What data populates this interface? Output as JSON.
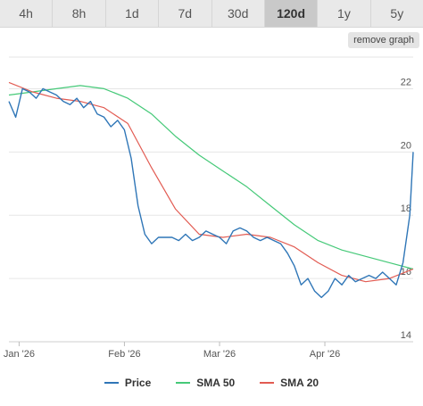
{
  "tabs": [
    {
      "label": "4h",
      "active": false
    },
    {
      "label": "8h",
      "active": false
    },
    {
      "label": "1d",
      "active": false
    },
    {
      "label": "7d",
      "active": false
    },
    {
      "label": "30d",
      "active": false
    },
    {
      "label": "120d",
      "active": true
    },
    {
      "label": "1y",
      "active": false
    },
    {
      "label": "5y",
      "active": false
    }
  ],
  "remove_graph_label": "remove graph",
  "colors": {
    "price": "#2f76b7",
    "sma50": "#45c978",
    "sma20": "#e25b52"
  },
  "chart_data": {
    "type": "line",
    "y_range": [
      14,
      23
    ],
    "y_ticks": [
      "14",
      "16",
      "18",
      "20",
      "22"
    ],
    "x_ticks": [
      {
        "label": "Jan '26",
        "date": "2026-01-01"
      },
      {
        "label": "Feb '26",
        "date": "2026-02-01"
      },
      {
        "label": "Mar '26",
        "date": "2026-03-01"
      },
      {
        "label": "Apr '26",
        "date": "2026-04-01"
      }
    ],
    "x_range": [
      "2025-12-29",
      "2026-04-27"
    ],
    "grid": true,
    "legend_position": "bottom",
    "series": [
      {
        "name": "Price",
        "key": "price",
        "points": [
          [
            "2025-12-29",
            21.6
          ],
          [
            "2025-12-31",
            21.1
          ],
          [
            "2026-01-02",
            22.0
          ],
          [
            "2026-01-04",
            21.9
          ],
          [
            "2026-01-06",
            21.7
          ],
          [
            "2026-01-08",
            22.0
          ],
          [
            "2026-01-10",
            21.9
          ],
          [
            "2026-01-12",
            21.8
          ],
          [
            "2026-01-14",
            21.6
          ],
          [
            "2026-01-16",
            21.5
          ],
          [
            "2026-01-18",
            21.7
          ],
          [
            "2026-01-20",
            21.4
          ],
          [
            "2026-01-22",
            21.6
          ],
          [
            "2026-01-24",
            21.2
          ],
          [
            "2026-01-26",
            21.1
          ],
          [
            "2026-01-28",
            20.8
          ],
          [
            "2026-01-30",
            21.0
          ],
          [
            "2026-02-01",
            20.7
          ],
          [
            "2026-02-03",
            19.8
          ],
          [
            "2026-02-05",
            18.3
          ],
          [
            "2026-02-07",
            17.4
          ],
          [
            "2026-02-09",
            17.1
          ],
          [
            "2026-02-11",
            17.3
          ],
          [
            "2026-02-13",
            17.3
          ],
          [
            "2026-02-15",
            17.3
          ],
          [
            "2026-02-17",
            17.2
          ],
          [
            "2026-02-19",
            17.4
          ],
          [
            "2026-02-21",
            17.2
          ],
          [
            "2026-02-23",
            17.3
          ],
          [
            "2026-02-25",
            17.5
          ],
          [
            "2026-02-27",
            17.4
          ],
          [
            "2026-03-01",
            17.3
          ],
          [
            "2026-03-03",
            17.1
          ],
          [
            "2026-03-05",
            17.5
          ],
          [
            "2026-03-07",
            17.6
          ],
          [
            "2026-03-09",
            17.5
          ],
          [
            "2026-03-11",
            17.3
          ],
          [
            "2026-03-13",
            17.2
          ],
          [
            "2026-03-15",
            17.3
          ],
          [
            "2026-03-17",
            17.2
          ],
          [
            "2026-03-19",
            17.1
          ],
          [
            "2026-03-21",
            16.8
          ],
          [
            "2026-03-23",
            16.4
          ],
          [
            "2026-03-25",
            15.8
          ],
          [
            "2026-03-27",
            16.0
          ],
          [
            "2026-03-29",
            15.6
          ],
          [
            "2026-03-31",
            15.4
          ],
          [
            "2026-04-02",
            15.6
          ],
          [
            "2026-04-04",
            16.0
          ],
          [
            "2026-04-06",
            15.8
          ],
          [
            "2026-04-08",
            16.1
          ],
          [
            "2026-04-10",
            15.9
          ],
          [
            "2026-04-12",
            16.0
          ],
          [
            "2026-04-14",
            16.1
          ],
          [
            "2026-04-16",
            16.0
          ],
          [
            "2026-04-18",
            16.2
          ],
          [
            "2026-04-20",
            16.0
          ],
          [
            "2026-04-22",
            15.8
          ],
          [
            "2026-04-24",
            16.5
          ],
          [
            "2026-04-26",
            18.0
          ],
          [
            "2026-04-27",
            20.0
          ]
        ]
      },
      {
        "name": "SMA 50",
        "key": "sma50",
        "points": [
          [
            "2025-12-29",
            21.8
          ],
          [
            "2026-01-05",
            21.9
          ],
          [
            "2026-01-12",
            22.0
          ],
          [
            "2026-01-19",
            22.1
          ],
          [
            "2026-01-26",
            22.0
          ],
          [
            "2026-02-02",
            21.7
          ],
          [
            "2026-02-09",
            21.2
          ],
          [
            "2026-02-16",
            20.5
          ],
          [
            "2026-02-23",
            19.9
          ],
          [
            "2026-03-02",
            19.4
          ],
          [
            "2026-03-09",
            18.9
          ],
          [
            "2026-03-16",
            18.3
          ],
          [
            "2026-03-23",
            17.7
          ],
          [
            "2026-03-30",
            17.2
          ],
          [
            "2026-04-06",
            16.9
          ],
          [
            "2026-04-13",
            16.7
          ],
          [
            "2026-04-20",
            16.5
          ],
          [
            "2026-04-27",
            16.3
          ]
        ]
      },
      {
        "name": "SMA 20",
        "key": "sma20",
        "points": [
          [
            "2025-12-29",
            22.2
          ],
          [
            "2026-01-05",
            21.9
          ],
          [
            "2026-01-12",
            21.7
          ],
          [
            "2026-01-19",
            21.6
          ],
          [
            "2026-01-26",
            21.4
          ],
          [
            "2026-02-02",
            20.9
          ],
          [
            "2026-02-09",
            19.5
          ],
          [
            "2026-02-16",
            18.2
          ],
          [
            "2026-02-23",
            17.4
          ],
          [
            "2026-03-02",
            17.3
          ],
          [
            "2026-03-09",
            17.4
          ],
          [
            "2026-03-16",
            17.3
          ],
          [
            "2026-03-23",
            17.0
          ],
          [
            "2026-03-30",
            16.5
          ],
          [
            "2026-04-06",
            16.1
          ],
          [
            "2026-04-13",
            15.9
          ],
          [
            "2026-04-20",
            16.0
          ],
          [
            "2026-04-27",
            16.3
          ]
        ]
      }
    ]
  }
}
